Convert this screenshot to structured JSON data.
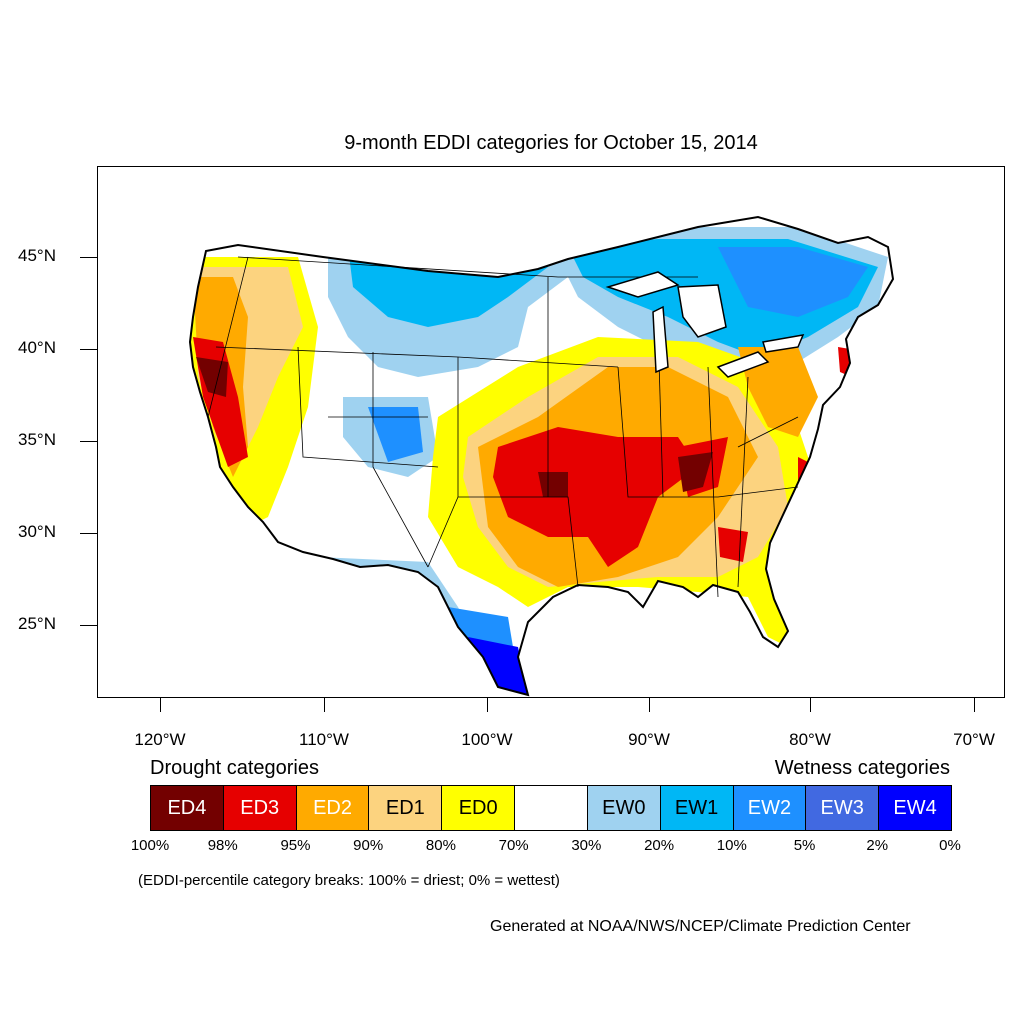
{
  "title": "9-month EDDI categories for October 15, 2014",
  "latitude_labels": [
    "45°N",
    "40°N",
    "35°N",
    "30°N",
    "25°N"
  ],
  "longitude_labels": [
    "120°W",
    "110°W",
    "100°W",
    "90°W",
    "80°W",
    "70°W"
  ],
  "map_extent": {
    "lon_min": -124,
    "lon_max": -68.5,
    "lat_min": 21,
    "lat_max": 49.5
  },
  "legend": {
    "drought_title": "Drought categories",
    "wetness_title": "Wetness categories",
    "categories": [
      {
        "label": "ED4",
        "color": "#730000",
        "text_color": "#ffffff"
      },
      {
        "label": "ED3",
        "color": "#e60000",
        "text_color": "#ffffff"
      },
      {
        "label": "ED2",
        "color": "#ffaa00",
        "text_color": "#ffffff"
      },
      {
        "label": "ED1",
        "color": "#fcd37f",
        "text_color": "#000000"
      },
      {
        "label": "ED0",
        "color": "#ffff00",
        "text_color": "#000000"
      },
      {
        "label": "",
        "color": "#ffffff",
        "text_color": "#000000"
      },
      {
        "label": "EW0",
        "color": "#9fd2f0",
        "text_color": "#000000"
      },
      {
        "label": "EW1",
        "color": "#00b7f5",
        "text_color": "#000000"
      },
      {
        "label": "EW2",
        "color": "#1e90ff",
        "text_color": "#ffffff"
      },
      {
        "label": "EW3",
        "color": "#4169e1",
        "text_color": "#ffffff"
      },
      {
        "label": "EW4",
        "color": "#0000ff",
        "text_color": "#ffffff"
      }
    ],
    "breaks": [
      "100%",
      "98%",
      "95%",
      "90%",
      "80%",
      "70%",
      "30%",
      "20%",
      "10%",
      "5%",
      "2%",
      "0%"
    ]
  },
  "note": "(EDDI-percentile category breaks: 100% = driest; 0% = wettest)",
  "credit": "Generated at NOAA/NWS/NCEP/Climate Prediction Center"
}
